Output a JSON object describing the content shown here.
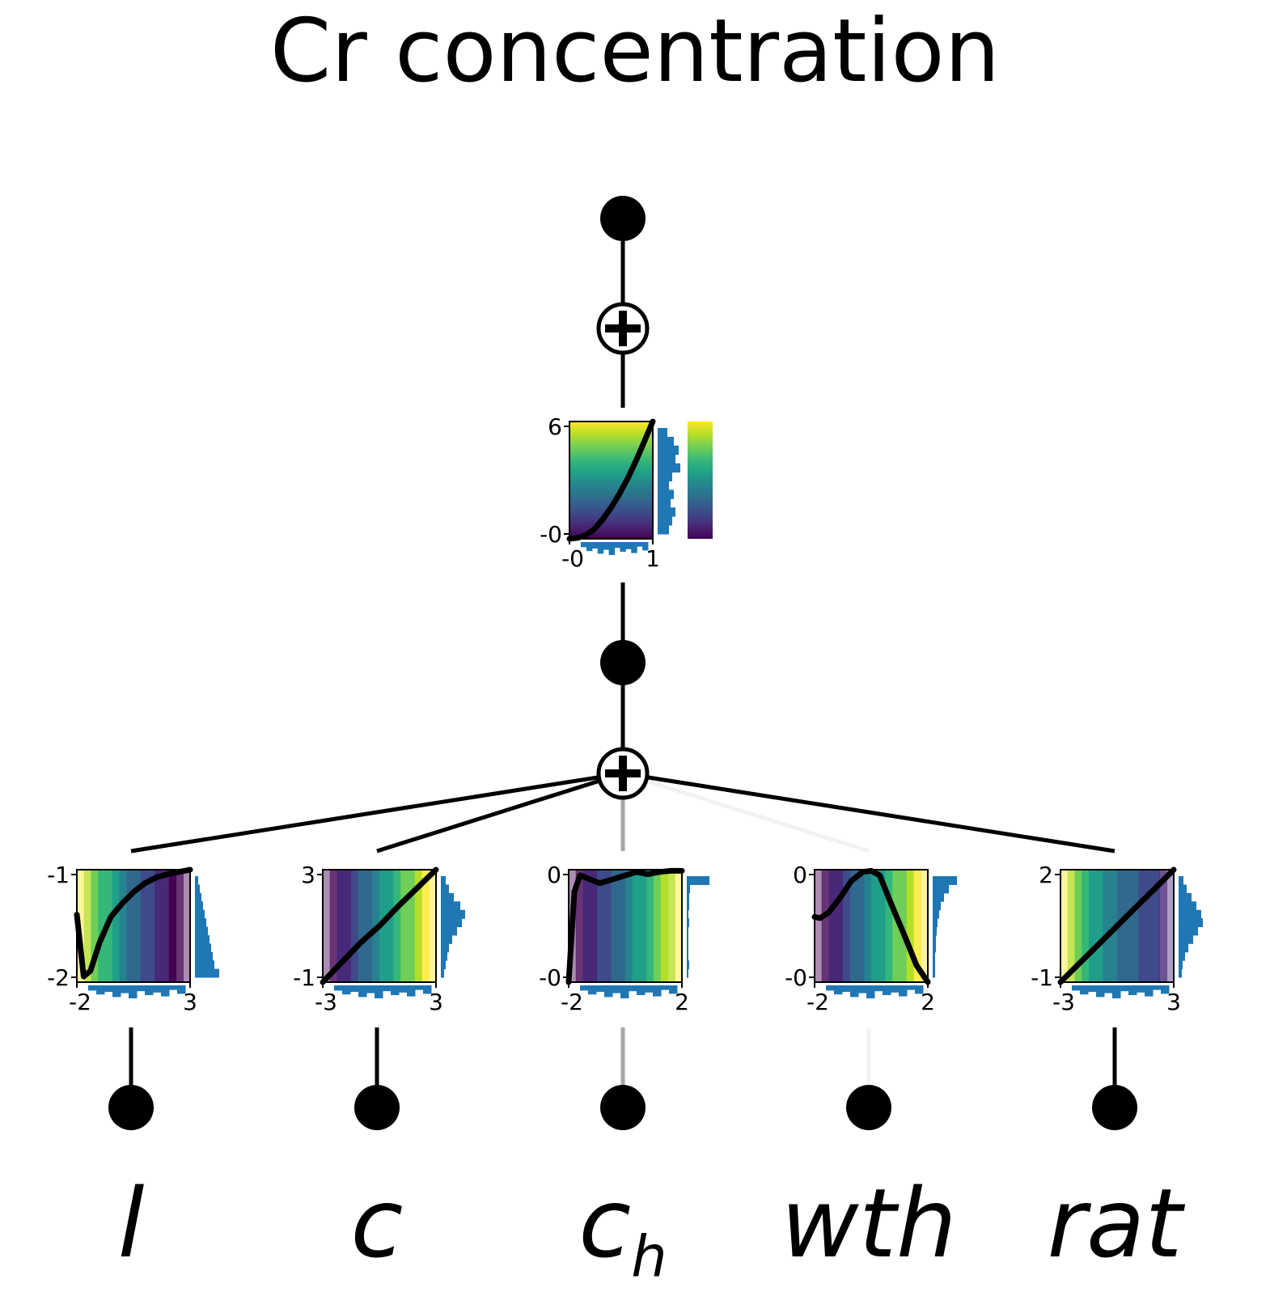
{
  "title": "Cr concentration",
  "colors": {
    "edge": "#000000",
    "hist": "#1f77b4",
    "node": "#000000"
  },
  "colormap": [
    "#440154",
    "#482878",
    "#3e4a89",
    "#31688e",
    "#26828e",
    "#1f9e89",
    "#35b779",
    "#6ece58",
    "#b5de2b",
    "#fde725"
  ],
  "output_node": {
    "function_plot": {
      "x_ticks": [
        "-0",
        "1"
      ],
      "y_ticks": [
        "6",
        "-0"
      ],
      "curve": [
        [
          0,
          0
        ],
        [
          0.1,
          0.05
        ],
        [
          0.2,
          0.2
        ],
        [
          0.3,
          0.5
        ],
        [
          0.4,
          1.0
        ],
        [
          0.5,
          1.6
        ],
        [
          0.6,
          2.3
        ],
        [
          0.7,
          3.1
        ],
        [
          0.8,
          4.0
        ],
        [
          0.9,
          5.0
        ],
        [
          1.0,
          6.0
        ]
      ],
      "colorbar": true
    }
  },
  "inputs": [
    {
      "name": "l",
      "sub": "",
      "edge_strength": 1.0,
      "x_ticks": [
        "-2",
        "3"
      ],
      "y_ticks": [
        "-1",
        "-2"
      ],
      "curve": [
        [
          -2,
          -1.4
        ],
        [
          -1.7,
          -1.95
        ],
        [
          -1.4,
          -1.9
        ],
        [
          -1.0,
          -1.65
        ],
        [
          -0.5,
          -1.42
        ],
        [
          0,
          -1.3
        ],
        [
          0.5,
          -1.2
        ],
        [
          1.0,
          -1.12
        ],
        [
          1.5,
          -1.07
        ],
        [
          2.0,
          -1.04
        ],
        [
          2.5,
          -1.02
        ],
        [
          3,
          -1.0
        ]
      ],
      "band": [
        9,
        8,
        7,
        6,
        6,
        5,
        4,
        3,
        3,
        2,
        2,
        1,
        1,
        0,
        0,
        0
      ]
    },
    {
      "name": "c",
      "sub": "",
      "edge_strength": 1.0,
      "x_ticks": [
        "-3",
        "3"
      ],
      "y_ticks": [
        "3",
        "-1"
      ],
      "curve": [
        [
          -3,
          -1
        ],
        [
          -2,
          -0.3
        ],
        [
          -1,
          0.4
        ],
        [
          0,
          1.0
        ],
        [
          1,
          1.7
        ],
        [
          2,
          2.35
        ],
        [
          3,
          3
        ]
      ],
      "band": [
        0,
        0,
        1,
        1,
        2,
        3,
        3,
        4,
        5,
        5,
        6,
        7,
        7,
        8,
        9,
        9
      ]
    },
    {
      "name": "c",
      "sub": "h",
      "edge_strength": 0.35,
      "x_ticks": [
        "-2",
        "2"
      ],
      "y_ticks": [
        "0",
        "-0"
      ],
      "curve": [
        [
          -2,
          -1
        ],
        [
          -1.9,
          -0.6
        ],
        [
          -1.8,
          -0.2
        ],
        [
          -1.6,
          -0.05
        ],
        [
          -1.3,
          -0.08
        ],
        [
          -0.9,
          -0.12
        ],
        [
          -0.5,
          -0.09
        ],
        [
          0,
          -0.05
        ],
        [
          0.4,
          -0.02
        ],
        [
          0.8,
          -0.04
        ],
        [
          1.2,
          -0.02
        ],
        [
          1.6,
          -0.01
        ],
        [
          2,
          -0.01
        ]
      ],
      "band": [
        0,
        0,
        1,
        1,
        2,
        2,
        3,
        3,
        4,
        5,
        5,
        6,
        7,
        8,
        8,
        9
      ]
    },
    {
      "name": "wth",
      "sub": "",
      "edge_strength": 0.05,
      "x_ticks": [
        "-2",
        "2"
      ],
      "y_ticks": [
        "0",
        "-0"
      ],
      "curve": [
        [
          -2,
          -0.42
        ],
        [
          -1.8,
          -0.43
        ],
        [
          -1.5,
          -0.38
        ],
        [
          -1.1,
          -0.25
        ],
        [
          -0.7,
          -0.1
        ],
        [
          -0.3,
          -0.02
        ],
        [
          0,
          -0.01
        ],
        [
          0.3,
          -0.05
        ],
        [
          0.7,
          -0.3
        ],
        [
          1.2,
          -0.6
        ],
        [
          1.6,
          -0.85
        ],
        [
          2,
          -1
        ]
      ],
      "band": [
        0,
        0,
        1,
        1,
        2,
        3,
        3,
        4,
        5,
        5,
        6,
        7,
        7,
        8,
        9,
        9
      ]
    },
    {
      "name": "rat",
      "sub": "",
      "edge_strength": 1.0,
      "x_ticks": [
        "-3",
        "3"
      ],
      "y_ticks": [
        "2",
        "-1"
      ],
      "curve": [
        [
          -3,
          -1
        ],
        [
          -2,
          -0.5
        ],
        [
          -1,
          0.0
        ],
        [
          0,
          0.5
        ],
        [
          1,
          1.0
        ],
        [
          2,
          1.5
        ],
        [
          3,
          2
        ]
      ],
      "band": [
        9,
        8,
        7,
        6,
        5,
        5,
        4,
        4,
        3,
        3,
        3,
        2,
        2,
        2,
        1,
        1
      ]
    }
  ]
}
